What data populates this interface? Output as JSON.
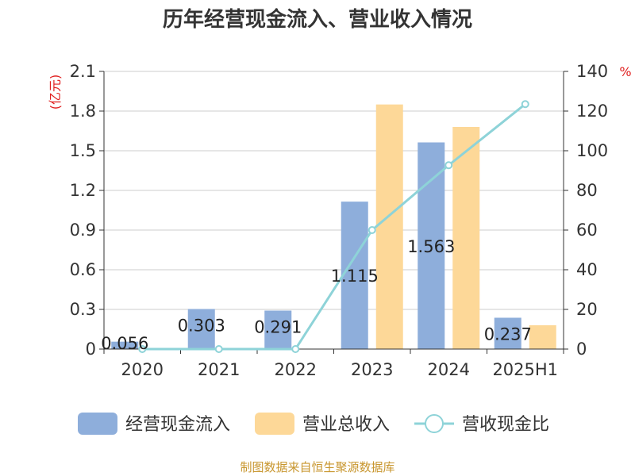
{
  "chart_data": {
    "type": "bar",
    "title": "历年经营现金流入、营业收入情况",
    "categories": [
      "2020",
      "2021",
      "2022",
      "2023",
      "2024",
      "2025H1"
    ],
    "series": [
      {
        "name": "经营现金流入",
        "type": "bar",
        "axis": "left",
        "color": "#8eaedb",
        "values": [
          0.056,
          0.303,
          0.291,
          1.115,
          1.563,
          0.237
        ],
        "labels": [
          "0.056",
          "0.303",
          "0.291",
          "1.115",
          "1.563",
          "0.237"
        ]
      },
      {
        "name": "营业总收入",
        "type": "bar",
        "axis": "left",
        "color": "#fdd898",
        "values": [
          0,
          0,
          0,
          1.85,
          1.68,
          0.18
        ]
      },
      {
        "name": "营收现金比",
        "type": "line",
        "axis": "right",
        "color": "#8ed3d8",
        "values": [
          0,
          0,
          0,
          60,
          92.7,
          123.5
        ]
      }
    ],
    "y_left": {
      "unit": "(亿元)",
      "ylim": [
        0,
        2.1
      ],
      "ticks": [
        "0",
        "0.3",
        "0.6",
        "0.9",
        "1.2",
        "1.5",
        "1.8",
        "2.1"
      ]
    },
    "y_right": {
      "unit": "%",
      "ylim": [
        0,
        140
      ],
      "ticks": [
        "0",
        "20",
        "40",
        "60",
        "80",
        "100",
        "120",
        "140"
      ]
    },
    "grid": true,
    "legend_position": "bottom"
  },
  "source": "制图数据来自恒生聚源数据库"
}
